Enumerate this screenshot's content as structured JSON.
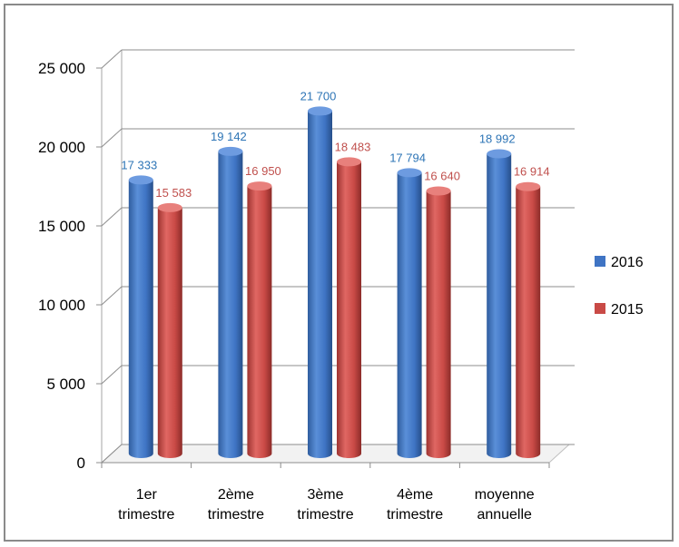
{
  "chart_data": {
    "type": "bar",
    "categories": [
      [
        "1er",
        "trimestre"
      ],
      [
        "2ème",
        "trimestre"
      ],
      [
        "3ème",
        "trimestre"
      ],
      [
        "4ème",
        "trimestre"
      ],
      [
        "moyenne",
        "annuelle"
      ]
    ],
    "series": [
      {
        "name": "2016",
        "color": "#3f74c4",
        "values": [
          17333,
          19142,
          21700,
          17794,
          18992
        ],
        "labels": [
          "17 333",
          "19 142",
          "21 700",
          "17 794",
          "18 992"
        ]
      },
      {
        "name": "2015",
        "color": "#c94a46",
        "values": [
          15583,
          16950,
          18483,
          16640,
          16914
        ],
        "labels": [
          "15 583",
          "16 950",
          "18 483",
          "16 640",
          "16 914"
        ]
      }
    ],
    "y_ticks": [
      0,
      5000,
      10000,
      15000,
      20000,
      25000
    ],
    "y_tick_labels": [
      "0",
      "5 000",
      "10 000",
      "15 000",
      "20 000",
      "25 000"
    ],
    "ylim": [
      0,
      25000
    ],
    "grid": true,
    "legend_position": "right",
    "label_colors": {
      "2016": "#2e75b6",
      "2015": "#c0504d"
    }
  }
}
